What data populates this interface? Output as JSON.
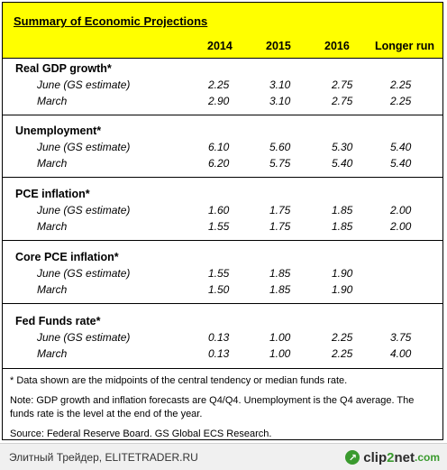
{
  "title": "Summary of Economic Projections",
  "columns": [
    "2014",
    "2015",
    "2016",
    "Longer run"
  ],
  "sections": [
    {
      "title": "Real GDP growth*",
      "rows": [
        {
          "label": "June (GS estimate)",
          "values": [
            "2.25",
            "3.10",
            "2.75",
            "2.25"
          ]
        },
        {
          "label": "March",
          "values": [
            "2.90",
            "3.10",
            "2.75",
            "2.25"
          ]
        }
      ]
    },
    {
      "title": "Unemployment*",
      "rows": [
        {
          "label": "June (GS estimate)",
          "values": [
            "6.10",
            "5.60",
            "5.30",
            "5.40"
          ]
        },
        {
          "label": "March",
          "values": [
            "6.20",
            "5.75",
            "5.40",
            "5.40"
          ]
        }
      ]
    },
    {
      "title": "PCE inflation*",
      "rows": [
        {
          "label": "June (GS estimate)",
          "values": [
            "1.60",
            "1.75",
            "1.85",
            "2.00"
          ]
        },
        {
          "label": "March",
          "values": [
            "1.55",
            "1.75",
            "1.85",
            "2.00"
          ]
        }
      ]
    },
    {
      "title": "Core PCE inflation*",
      "rows": [
        {
          "label": "June (GS estimate)",
          "values": [
            "1.55",
            "1.85",
            "1.90",
            ""
          ]
        },
        {
          "label": "March",
          "values": [
            "1.50",
            "1.85",
            "1.90",
            ""
          ]
        }
      ]
    },
    {
      "title": "Fed Funds rate*",
      "rows": [
        {
          "label": "June (GS estimate)",
          "values": [
            "0.13",
            "1.00",
            "2.25",
            "3.75"
          ]
        },
        {
          "label": "March",
          "values": [
            "0.13",
            "1.00",
            "2.25",
            "4.00"
          ]
        }
      ]
    }
  ],
  "footnote": "* Data shown are the midpoints of the central tendency or median funds rate.",
  "note": "Note: GDP growth and inflation forecasts are Q4/Q4.  Unemployment is the Q4 average. The funds rate is the level at the end of the year.",
  "source": "Source: Federal Reserve Board. GS Global ECS Research.",
  "footer": {
    "left_text": "Элитный Трейдер, ELITETRADER.RU",
    "brand_prefix": "clip",
    "brand_num": "2",
    "brand_suffix": "net",
    "brand_tld": ".com"
  }
}
